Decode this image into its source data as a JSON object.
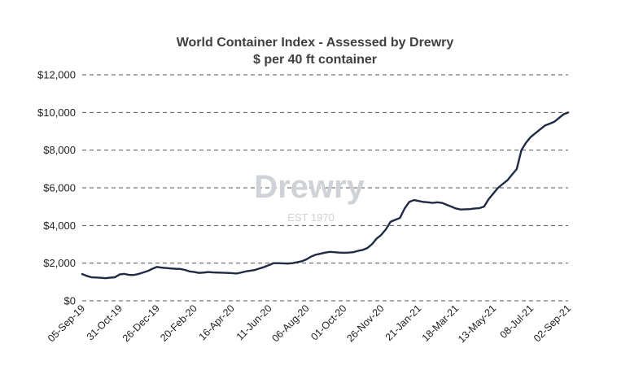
{
  "chart_data": {
    "type": "line",
    "title": "World Container Index - Assessed by Drewry",
    "subtitle": "$ per 40 ft container",
    "xlabel": "",
    "ylabel": "",
    "ylim": [
      0,
      12000
    ],
    "grid": "horizontal-dashed",
    "y_ticks": [
      "$0",
      "$2,000",
      "$4,000",
      "$6,000",
      "$8,000",
      "$10,000",
      "$12,000"
    ],
    "y_tick_values": [
      0,
      2000,
      4000,
      6000,
      8000,
      10000,
      12000
    ],
    "x_ticks": [
      "05-Sep-19",
      "31-Oct-19",
      "26-Dec-19",
      "20-Feb-20",
      "16-Apr-20",
      "11-Jun-20",
      "06-Aug-20",
      "01-Oct-20",
      "26-Nov-20",
      "21-Jan-21",
      "18-Mar-21",
      "13-May-21",
      "08-Jul-21",
      "02-Sep-21"
    ],
    "line_color": "#1f2a44",
    "watermark": {
      "brand": "Drewry",
      "tagline": "EST 1970"
    },
    "series": [
      {
        "values": [
          1420,
          1320,
          1250,
          1240,
          1220,
          1200,
          1230,
          1250,
          1400,
          1430,
          1380,
          1370,
          1420,
          1500,
          1580,
          1700,
          1800,
          1760,
          1740,
          1720,
          1700,
          1690,
          1640,
          1560,
          1530,
          1480,
          1500,
          1530,
          1510,
          1500,
          1490,
          1480,
          1470,
          1450,
          1500,
          1560,
          1600,
          1640,
          1720,
          1800,
          1900,
          2000,
          2000,
          1990,
          1980,
          2000,
          2050,
          2100,
          2200,
          2350,
          2450,
          2500,
          2560,
          2600,
          2580,
          2560,
          2550,
          2560,
          2580,
          2650,
          2700,
          2800,
          3000,
          3300,
          3500,
          3800,
          4200,
          4300,
          4400,
          4900,
          5250,
          5350,
          5300,
          5250,
          5230,
          5200,
          5230,
          5200,
          5100,
          5000,
          4900,
          4850,
          4860,
          4870,
          4900,
          4920,
          5000,
          5400,
          5700,
          6000,
          6200,
          6400,
          6700,
          7000,
          8000,
          8400,
          8700,
          8900,
          9100,
          9300,
          9400,
          9500,
          9700,
          9900,
          10000
        ]
      }
    ]
  }
}
